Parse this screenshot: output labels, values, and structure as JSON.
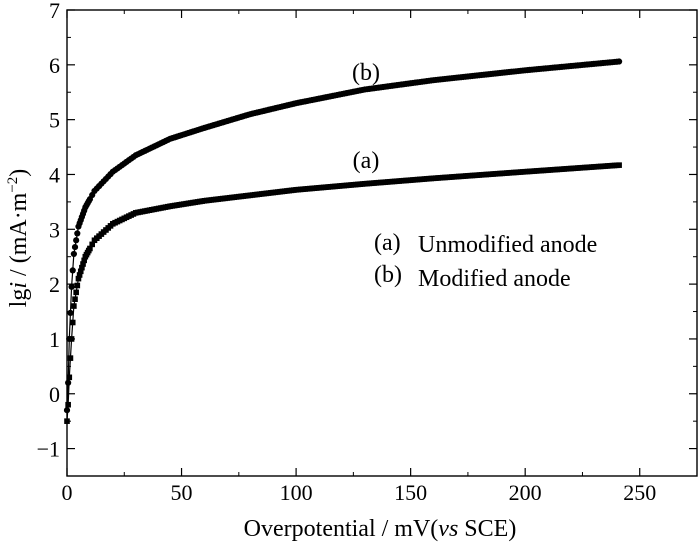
{
  "chart_data": {
    "type": "scatter",
    "title": "",
    "xlabel": {
      "prefix": "Overpotential / mV(",
      "italic": "vs",
      "suffix": " SCE)"
    },
    "ylabel": {
      "prefix": "lg",
      "italic": "i",
      "suffix": " / (mA·m",
      "sup": "−2",
      "close": ")"
    },
    "xlim": [
      0,
      275
    ],
    "ylim": [
      -1.5,
      7
    ],
    "x_ticks": [
      0,
      50,
      100,
      150,
      200,
      250
    ],
    "x_tick_labels": [
      "0",
      "50",
      "100",
      "150",
      "200",
      "250"
    ],
    "y_ticks": [
      -1,
      0,
      1,
      2,
      3,
      4,
      5,
      6,
      7
    ],
    "y_tick_labels": [
      "−1",
      "0",
      "1",
      "2",
      "3",
      "4",
      "5",
      "6",
      "7"
    ],
    "grid": false,
    "legend_position": "right-middle",
    "legend": [
      {
        "tag": "(a)",
        "text": "Unmodified anode"
      },
      {
        "tag": "(b)",
        "text": "Modified anode"
      }
    ],
    "series": [
      {
        "curve_label": "(a)",
        "marker": "square",
        "x": [
          0,
          0.5,
          1,
          2,
          3,
          5,
          8,
          12,
          20,
          30,
          45,
          60,
          80,
          100,
          130,
          160,
          200,
          241
        ],
        "y": [
          -0.5,
          -0.2,
          0.3,
          1.0,
          1.6,
          2.1,
          2.5,
          2.8,
          3.1,
          3.3,
          3.42,
          3.52,
          3.62,
          3.72,
          3.83,
          3.93,
          4.05,
          4.17
        ]
      },
      {
        "curve_label": "(b)",
        "marker": "circle",
        "x": [
          0,
          0.5,
          1,
          2,
          3,
          5,
          8,
          12,
          20,
          30,
          45,
          60,
          80,
          100,
          130,
          160,
          200,
          241
        ],
        "y": [
          -0.3,
          0.2,
          1.0,
          1.95,
          2.55,
          3.05,
          3.4,
          3.7,
          4.05,
          4.35,
          4.65,
          4.85,
          5.1,
          5.3,
          5.55,
          5.72,
          5.9,
          6.06
        ]
      }
    ]
  }
}
